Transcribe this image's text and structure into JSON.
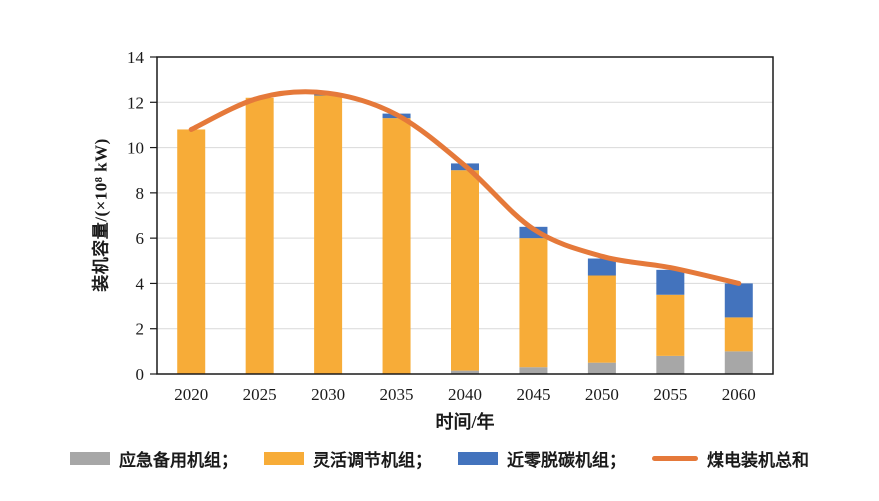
{
  "chart_data": {
    "type": "bar",
    "subtype": "stacked-bars-with-line-overlay",
    "title": "",
    "categories": [
      "2020",
      "2025",
      "2030",
      "2035",
      "2040",
      "2045",
      "2050",
      "2055",
      "2060"
    ],
    "stacked": true,
    "series": [
      {
        "name": "应急备用机组",
        "type": "bar",
        "color": "#A7A7A7",
        "values": [
          0,
          0,
          0,
          0,
          0.15,
          0.3,
          0.5,
          0.8,
          1.0
        ]
      },
      {
        "name": "灵活调节机组",
        "type": "bar",
        "color": "#F7AC38",
        "values": [
          10.8,
          12.2,
          12.3,
          11.3,
          8.85,
          5.7,
          3.85,
          2.7,
          1.5
        ]
      },
      {
        "name": "近零脱碳机组",
        "type": "bar",
        "color": "#4373BD",
        "values": [
          0,
          0,
          0.1,
          0.2,
          0.3,
          0.5,
          0.75,
          1.1,
          1.5
        ]
      },
      {
        "name": "煤电装机总和",
        "type": "line",
        "color": "#E5793A",
        "values": [
          10.8,
          12.2,
          12.4,
          11.45,
          9.2,
          6.4,
          5.2,
          4.7,
          4.0
        ]
      }
    ],
    "bar_totals": [
      10.8,
      12.2,
      12.4,
      11.5,
      9.3,
      6.5,
      5.1,
      4.6,
      4.0
    ],
    "xlabel": "时间/年",
    "ylabel": "装机容量/(×10⁸ kW)",
    "ylim": [
      0,
      14
    ],
    "yticks": [
      0,
      2,
      4,
      6,
      8,
      10,
      12,
      14
    ],
    "grid": true,
    "gridline_color": "#D9D9D9",
    "axis_color": "#1A1A1A",
    "legend_position": "bottom",
    "legend": [
      {
        "label": "应急备用机组；",
        "swatch": "rect",
        "color": "#A7A7A7"
      },
      {
        "label": "灵活调节机组；",
        "swatch": "rect",
        "color": "#F7AC38"
      },
      {
        "label": "近零脱碳机组；",
        "swatch": "rect",
        "color": "#4373BD"
      },
      {
        "label": "煤电装机总和",
        "swatch": "line",
        "color": "#E5793A"
      }
    ]
  }
}
